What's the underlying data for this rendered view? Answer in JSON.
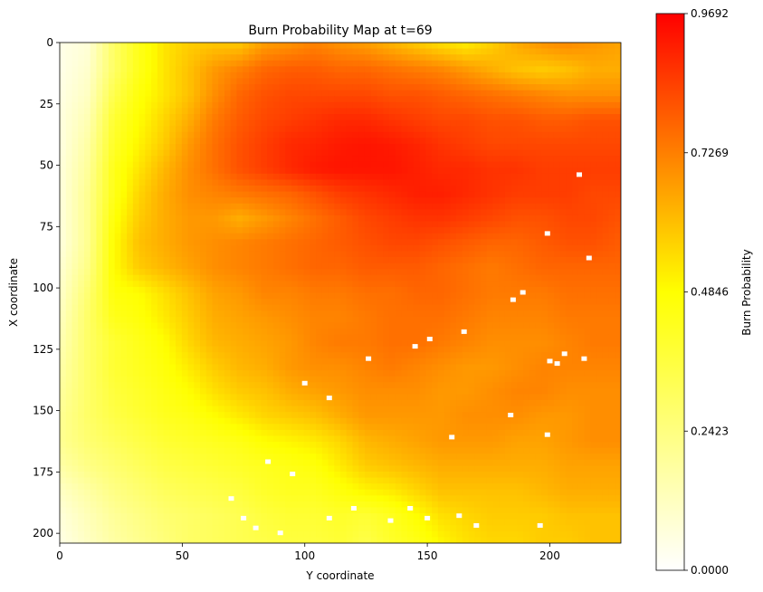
{
  "chart_data": {
    "type": "heatmap",
    "title": "Burn Probability Map at t=69",
    "xlabel": "Y coordinate",
    "ylabel": "X coordinate",
    "xlim": [
      0,
      229
    ],
    "ylim": [
      204,
      0
    ],
    "x_ticks": [
      0,
      50,
      100,
      150,
      200
    ],
    "y_ticks": [
      0,
      25,
      50,
      75,
      100,
      125,
      150,
      175,
      200
    ],
    "colorbar": {
      "label": "Burn Probability",
      "min": 0.0,
      "max": 0.9692,
      "ticks": [
        "0.0000",
        "0.2423",
        "0.4846",
        "0.7269",
        "0.9692"
      ],
      "colormap": [
        "#ffffff",
        "#ffff00",
        "#ff7f00",
        "#ff0000"
      ]
    },
    "field": {
      "columns": 23,
      "rows": 21,
      "description_levels": [
        [
          0.05,
          0.08,
          0.3,
          0.45,
          0.55,
          0.6,
          0.62,
          0.62,
          0.7,
          0.72,
          0.75,
          0.72,
          0.7,
          0.66,
          0.62,
          0.58,
          0.55,
          0.6,
          0.66,
          0.7,
          0.72,
          0.7,
          0.68
        ],
        [
          0.05,
          0.1,
          0.3,
          0.45,
          0.55,
          0.62,
          0.7,
          0.75,
          0.8,
          0.82,
          0.82,
          0.8,
          0.8,
          0.78,
          0.76,
          0.74,
          0.7,
          0.66,
          0.62,
          0.6,
          0.62,
          0.66,
          0.66
        ],
        [
          0.06,
          0.12,
          0.35,
          0.48,
          0.55,
          0.62,
          0.72,
          0.8,
          0.84,
          0.86,
          0.86,
          0.86,
          0.86,
          0.84,
          0.84,
          0.82,
          0.8,
          0.78,
          0.76,
          0.74,
          0.72,
          0.72,
          0.72
        ],
        [
          0.07,
          0.15,
          0.4,
          0.5,
          0.58,
          0.66,
          0.76,
          0.82,
          0.86,
          0.88,
          0.9,
          0.92,
          0.92,
          0.9,
          0.88,
          0.86,
          0.86,
          0.84,
          0.84,
          0.82,
          0.82,
          0.84,
          0.84
        ],
        [
          0.07,
          0.18,
          0.42,
          0.52,
          0.6,
          0.7,
          0.78,
          0.84,
          0.88,
          0.92,
          0.93,
          0.95,
          0.96,
          0.95,
          0.93,
          0.9,
          0.88,
          0.86,
          0.86,
          0.86,
          0.86,
          0.86,
          0.86
        ],
        [
          0.08,
          0.2,
          0.45,
          0.55,
          0.64,
          0.72,
          0.78,
          0.84,
          0.88,
          0.92,
          0.95,
          0.96,
          0.96,
          0.96,
          0.94,
          0.92,
          0.92,
          0.9,
          0.9,
          0.88,
          0.88,
          0.88,
          0.88
        ],
        [
          0.08,
          0.22,
          0.45,
          0.58,
          0.66,
          0.72,
          0.74,
          0.76,
          0.78,
          0.8,
          0.84,
          0.88,
          0.9,
          0.92,
          0.94,
          0.94,
          0.92,
          0.9,
          0.88,
          0.88,
          0.88,
          0.86,
          0.86
        ],
        [
          0.08,
          0.22,
          0.48,
          0.6,
          0.66,
          0.7,
          0.7,
          0.66,
          0.7,
          0.74,
          0.78,
          0.82,
          0.86,
          0.88,
          0.9,
          0.9,
          0.88,
          0.86,
          0.84,
          0.84,
          0.86,
          0.86,
          0.84
        ],
        [
          0.08,
          0.22,
          0.5,
          0.62,
          0.66,
          0.7,
          0.72,
          0.74,
          0.76,
          0.78,
          0.8,
          0.82,
          0.84,
          0.86,
          0.86,
          0.84,
          0.82,
          0.8,
          0.8,
          0.82,
          0.84,
          0.84,
          0.82
        ],
        [
          0.1,
          0.24,
          0.5,
          0.6,
          0.64,
          0.68,
          0.72,
          0.74,
          0.76,
          0.78,
          0.8,
          0.8,
          0.82,
          0.82,
          0.82,
          0.8,
          0.78,
          0.76,
          0.78,
          0.8,
          0.8,
          0.8,
          0.8
        ],
        [
          0.12,
          0.28,
          0.48,
          0.5,
          0.56,
          0.62,
          0.68,
          0.7,
          0.74,
          0.74,
          0.76,
          0.76,
          0.78,
          0.78,
          0.8,
          0.8,
          0.78,
          0.76,
          0.76,
          0.76,
          0.78,
          0.78,
          0.78
        ],
        [
          0.14,
          0.3,
          0.45,
          0.48,
          0.54,
          0.6,
          0.66,
          0.68,
          0.7,
          0.72,
          0.74,
          0.74,
          0.76,
          0.78,
          0.78,
          0.78,
          0.76,
          0.74,
          0.74,
          0.74,
          0.76,
          0.76,
          0.76
        ],
        [
          0.16,
          0.3,
          0.4,
          0.45,
          0.5,
          0.58,
          0.64,
          0.66,
          0.68,
          0.7,
          0.74,
          0.76,
          0.76,
          0.78,
          0.78,
          0.76,
          0.74,
          0.72,
          0.72,
          0.72,
          0.74,
          0.76,
          0.76
        ],
        [
          0.18,
          0.3,
          0.4,
          0.44,
          0.48,
          0.54,
          0.6,
          0.64,
          0.66,
          0.7,
          0.72,
          0.72,
          0.74,
          0.76,
          0.74,
          0.72,
          0.7,
          0.7,
          0.72,
          0.74,
          0.74,
          0.74,
          0.74
        ],
        [
          0.2,
          0.3,
          0.38,
          0.42,
          0.46,
          0.5,
          0.56,
          0.6,
          0.62,
          0.66,
          0.68,
          0.7,
          0.72,
          0.72,
          0.72,
          0.7,
          0.7,
          0.72,
          0.74,
          0.74,
          0.72,
          0.72,
          0.72
        ],
        [
          0.22,
          0.3,
          0.36,
          0.4,
          0.44,
          0.46,
          0.5,
          0.54,
          0.58,
          0.6,
          0.62,
          0.66,
          0.7,
          0.7,
          0.7,
          0.7,
          0.72,
          0.72,
          0.72,
          0.7,
          0.7,
          0.72,
          0.72
        ],
        [
          0.22,
          0.28,
          0.32,
          0.36,
          0.4,
          0.42,
          0.44,
          0.46,
          0.5,
          0.52,
          0.54,
          0.58,
          0.64,
          0.66,
          0.68,
          0.7,
          0.7,
          0.7,
          0.68,
          0.68,
          0.7,
          0.72,
          0.72
        ],
        [
          0.18,
          0.24,
          0.28,
          0.32,
          0.36,
          0.38,
          0.4,
          0.42,
          0.44,
          0.46,
          0.48,
          0.54,
          0.6,
          0.62,
          0.64,
          0.66,
          0.66,
          0.66,
          0.66,
          0.66,
          0.68,
          0.68,
          0.68
        ],
        [
          0.12,
          0.18,
          0.24,
          0.28,
          0.32,
          0.34,
          0.36,
          0.38,
          0.42,
          0.44,
          0.44,
          0.48,
          0.52,
          0.54,
          0.58,
          0.62,
          0.62,
          0.62,
          0.62,
          0.64,
          0.66,
          0.66,
          0.66
        ],
        [
          0.08,
          0.14,
          0.2,
          0.24,
          0.28,
          0.3,
          0.32,
          0.34,
          0.38,
          0.4,
          0.4,
          0.42,
          0.4,
          0.44,
          0.5,
          0.56,
          0.58,
          0.6,
          0.6,
          0.6,
          0.62,
          0.62,
          0.62
        ],
        [
          0.06,
          0.12,
          0.18,
          0.22,
          0.26,
          0.3,
          0.32,
          0.34,
          0.36,
          0.38,
          0.38,
          0.4,
          0.36,
          0.42,
          0.46,
          0.52,
          0.56,
          0.58,
          0.58,
          0.6,
          0.6,
          0.62,
          0.62
        ]
      ]
    },
    "unburned_patches": [
      {
        "x": 126,
        "y": 129
      },
      {
        "x": 145,
        "y": 124
      },
      {
        "x": 151,
        "y": 121
      },
      {
        "x": 165,
        "y": 118
      },
      {
        "x": 185,
        "y": 105
      },
      {
        "x": 189,
        "y": 102
      },
      {
        "x": 199,
        "y": 78
      },
      {
        "x": 212,
        "y": 54
      },
      {
        "x": 216,
        "y": 88
      },
      {
        "x": 200,
        "y": 130
      },
      {
        "x": 203,
        "y": 131
      },
      {
        "x": 214,
        "y": 129
      },
      {
        "x": 206,
        "y": 127
      },
      {
        "x": 184,
        "y": 152
      },
      {
        "x": 160,
        "y": 161
      },
      {
        "x": 199,
        "y": 160
      },
      {
        "x": 110,
        "y": 145
      },
      {
        "x": 100,
        "y": 139
      },
      {
        "x": 143,
        "y": 190
      },
      {
        "x": 150,
        "y": 194
      },
      {
        "x": 135,
        "y": 195
      },
      {
        "x": 120,
        "y": 190
      },
      {
        "x": 95,
        "y": 176
      },
      {
        "x": 85,
        "y": 171
      },
      {
        "x": 70,
        "y": 186
      },
      {
        "x": 75,
        "y": 194
      },
      {
        "x": 110,
        "y": 194
      },
      {
        "x": 80,
        "y": 198
      },
      {
        "x": 163,
        "y": 193
      },
      {
        "x": 170,
        "y": 197
      },
      {
        "x": 196,
        "y": 197
      },
      {
        "x": 90,
        "y": 200
      }
    ]
  }
}
